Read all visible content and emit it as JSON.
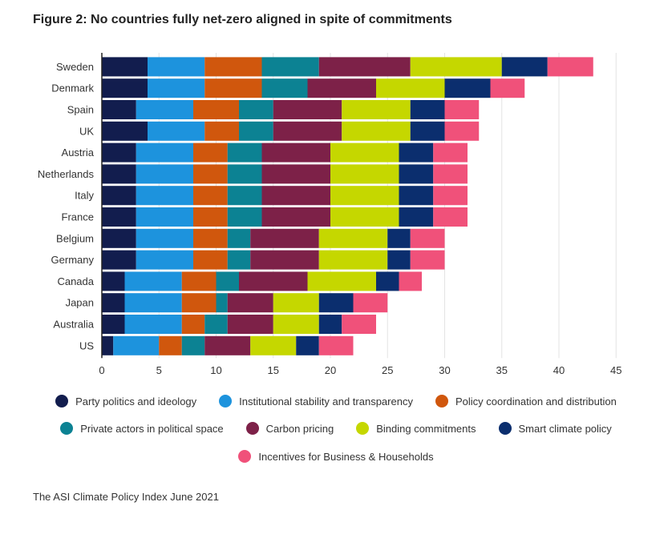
{
  "title": "Figure 2: No countries fully net-zero aligned in spite of commitments",
  "source": "The ASI Climate Policy Index June 2021",
  "chart_data": {
    "type": "bar",
    "orientation": "horizontal",
    "stacked": true,
    "categories": [
      "Sweden",
      "Denmark",
      "Spain",
      "UK",
      "Austria",
      "Netherlands",
      "Italy",
      "France",
      "Belgium",
      "Germany",
      "Canada",
      "Japan",
      "Australia",
      "US"
    ],
    "xlim": [
      0,
      45
    ],
    "xticks": [
      0,
      5,
      10,
      15,
      20,
      25,
      30,
      35,
      40,
      45
    ],
    "grid": "vertical",
    "legend_position": "bottom",
    "series": [
      {
        "name": "Party politics and ideology",
        "color": "#121d4e",
        "values": [
          4,
          4,
          3,
          4,
          3,
          3,
          3,
          3,
          3,
          3,
          2,
          2,
          2,
          1
        ]
      },
      {
        "name": "Institutional stability and transparency",
        "color": "#1d93dd",
        "values": [
          5,
          5,
          5,
          5,
          5,
          5,
          5,
          5,
          5,
          5,
          5,
          5,
          5,
          4
        ]
      },
      {
        "name": "Policy coordination and distribution",
        "color": "#d0570d",
        "values": [
          5,
          5,
          4,
          3,
          3,
          3,
          3,
          3,
          3,
          3,
          3,
          3,
          2,
          2
        ]
      },
      {
        "name": "Private actors in political space",
        "color": "#0c8293",
        "values": [
          5,
          4,
          3,
          3,
          3,
          3,
          3,
          3,
          2,
          2,
          2,
          1,
          2,
          2
        ]
      },
      {
        "name": "Carbon pricing",
        "color": "#7d2148",
        "values": [
          8,
          6,
          6,
          6,
          6,
          6,
          6,
          6,
          6,
          6,
          6,
          4,
          4,
          4
        ]
      },
      {
        "name": "Binding commitments",
        "color": "#c5d700",
        "values": [
          8,
          6,
          6,
          6,
          6,
          6,
          6,
          6,
          6,
          6,
          6,
          4,
          4,
          4
        ]
      },
      {
        "name": "Smart climate policy",
        "color": "#0b2e6e",
        "values": [
          4,
          4,
          3,
          3,
          3,
          3,
          3,
          3,
          2,
          2,
          2,
          3,
          2,
          2
        ]
      },
      {
        "name": "Incentives for Business & Households",
        "color": "#f0517a",
        "values": [
          4,
          3,
          3,
          3,
          3,
          3,
          3,
          3,
          3,
          3,
          2,
          3,
          3,
          3
        ]
      }
    ]
  }
}
